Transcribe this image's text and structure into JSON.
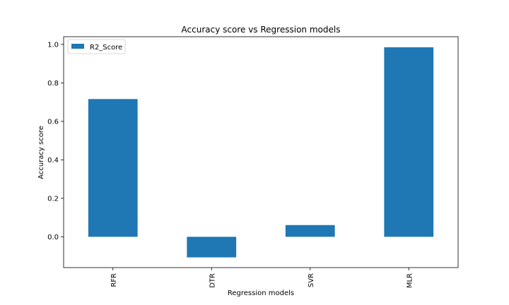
{
  "chart_data": {
    "type": "bar",
    "title": "Accuracy score vs Regression models",
    "xlabel": "Regression models",
    "ylabel": "Accuracy score",
    "categories": [
      "RFR",
      "DTR",
      "SVR",
      "MLR"
    ],
    "series": [
      {
        "name": "R2_Score",
        "values": [
          0.716,
          -0.107,
          0.061,
          0.985
        ],
        "color": "#1f77b4"
      }
    ],
    "ylim": [
      -0.16,
      1.04
    ],
    "yticks": [
      0.0,
      0.2,
      0.4,
      0.6,
      0.8,
      1.0
    ],
    "ytick_labels": [
      "0.0",
      "0.2",
      "0.4",
      "0.6",
      "0.8",
      "1.0"
    ],
    "grid": false,
    "legend_position": "upper-left"
  }
}
